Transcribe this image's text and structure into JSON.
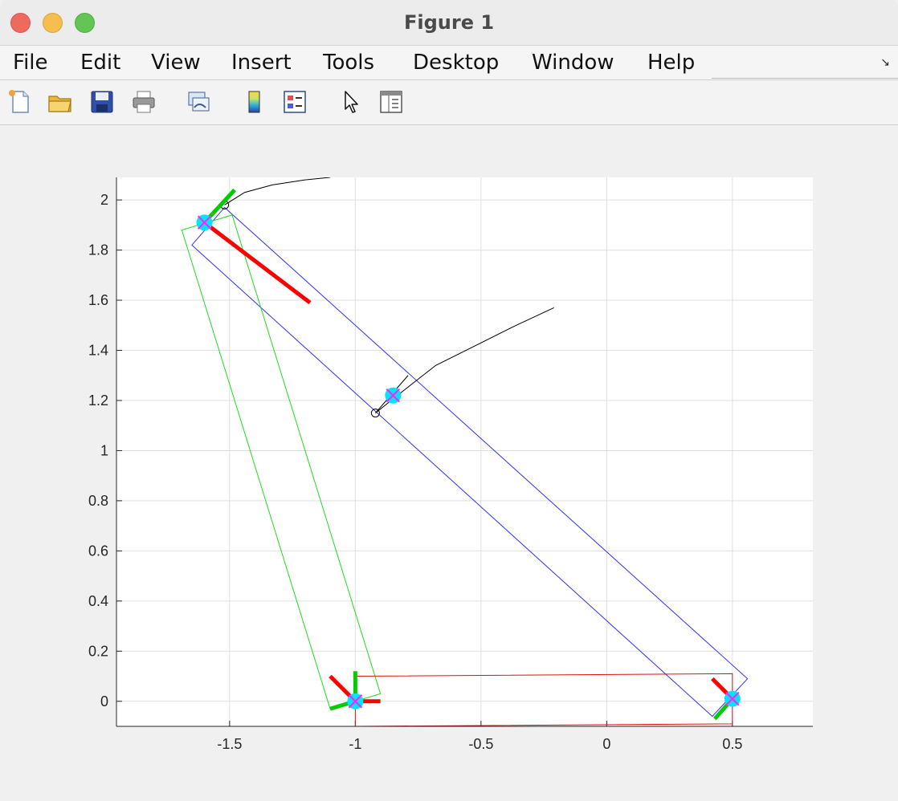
{
  "window": {
    "title": "Figure 1"
  },
  "menu": {
    "items": [
      "File",
      "Edit",
      "View",
      "Insert",
      "Tools",
      "Desktop",
      "Window",
      "Help"
    ],
    "overflow_icon": "undock-arrow-icon"
  },
  "toolbar": {
    "tools": [
      "new-figure-icon",
      "open-file-icon",
      "save-icon",
      "print-icon",
      "link-plot-icon",
      "insert-colorbar-icon",
      "insert-legend-icon",
      "edit-plot-pointer-icon",
      "property-inspector-icon"
    ]
  },
  "chart_data": {
    "type": "line",
    "title": "",
    "xlabel": "",
    "ylabel": "",
    "xlim": [
      -1.95,
      0.82
    ],
    "ylim": [
      -0.1,
      2.09
    ],
    "xticks": [
      "-1.5",
      "-1",
      "-0.5",
      "0",
      "0.5"
    ],
    "xtick_values": [
      -1.5,
      -1,
      -0.5,
      0,
      0.5
    ],
    "yticks": [
      "0",
      "0.2",
      "0.4",
      "0.6",
      "0.8",
      "1",
      "1.2",
      "1.4",
      "1.6",
      "1.8",
      "2"
    ],
    "ytick_values": [
      0,
      0.2,
      0.4,
      0.6,
      0.8,
      1,
      1.2,
      1.4,
      1.6,
      1.8,
      2
    ],
    "grid": true,
    "colors": {
      "blue_box": "#3030ff",
      "green_box": "#1edc1e",
      "red_box": "#e01010",
      "path": "#000000",
      "marker_fill": "#00e5ff",
      "marker_x": "#ff22ff",
      "frame_x": "#ff0000",
      "frame_y": "#00cc00"
    },
    "series": [
      {
        "kind": "polygon",
        "color_key": "blue_box",
        "points": [
          [
            -1.65,
            1.82
          ],
          [
            -1.52,
            1.97
          ],
          [
            0.56,
            0.09
          ],
          [
            0.42,
            -0.06
          ]
        ]
      },
      {
        "kind": "polygon",
        "color_key": "green_box",
        "points": [
          [
            -1.69,
            1.88
          ],
          [
            -1.49,
            1.94
          ],
          [
            -0.9,
            0.03
          ],
          [
            -1.1,
            -0.03
          ]
        ]
      },
      {
        "kind": "polygon",
        "color_key": "red_box",
        "points": [
          [
            -1.0,
            0.1
          ],
          [
            0.5,
            0.11
          ],
          [
            0.5,
            -0.09
          ],
          [
            -1.0,
            -0.1
          ]
        ]
      },
      {
        "kind": "line",
        "color_key": "path",
        "points": [
          [
            -1.52,
            1.98
          ],
          [
            -1.44,
            2.03
          ],
          [
            -1.33,
            2.06
          ],
          [
            -1.2,
            2.08
          ],
          [
            -1.1,
            2.09
          ]
        ]
      },
      {
        "kind": "line",
        "color_key": "path",
        "points": [
          [
            -0.92,
            1.15
          ],
          [
            -0.82,
            1.23
          ],
          [
            -0.68,
            1.34
          ],
          [
            -0.52,
            1.42
          ],
          [
            -0.36,
            1.5
          ],
          [
            -0.21,
            1.57
          ]
        ]
      },
      {
        "kind": "line",
        "color_key": "path",
        "points": [
          [
            -0.92,
            1.15
          ],
          [
            -0.79,
            1.3
          ]
        ]
      }
    ],
    "open_circles": [
      [
        -1.52,
        1.98
      ],
      [
        -0.92,
        1.15
      ]
    ],
    "markers": [
      {
        "x": -1.6,
        "y": 1.91,
        "frame": [
          [
            0.42,
            -0.32,
            "frame_x"
          ],
          [
            0.12,
            0.13,
            "frame_y"
          ]
        ]
      },
      {
        "x": -0.85,
        "y": 1.22,
        "frame": []
      },
      {
        "x": -1.0,
        "y": 0.0,
        "frame": [
          [
            -0.1,
            0.1,
            "frame_x"
          ],
          [
            0.1,
            0.0,
            "frame_x"
          ],
          [
            0.0,
            0.12,
            "frame_y"
          ],
          [
            -0.1,
            -0.03,
            "frame_y"
          ]
        ]
      },
      {
        "x": 0.5,
        "y": 0.01,
        "frame": [
          [
            -0.08,
            0.08,
            "frame_x"
          ],
          [
            -0.07,
            -0.08,
            "frame_y"
          ]
        ]
      }
    ]
  }
}
